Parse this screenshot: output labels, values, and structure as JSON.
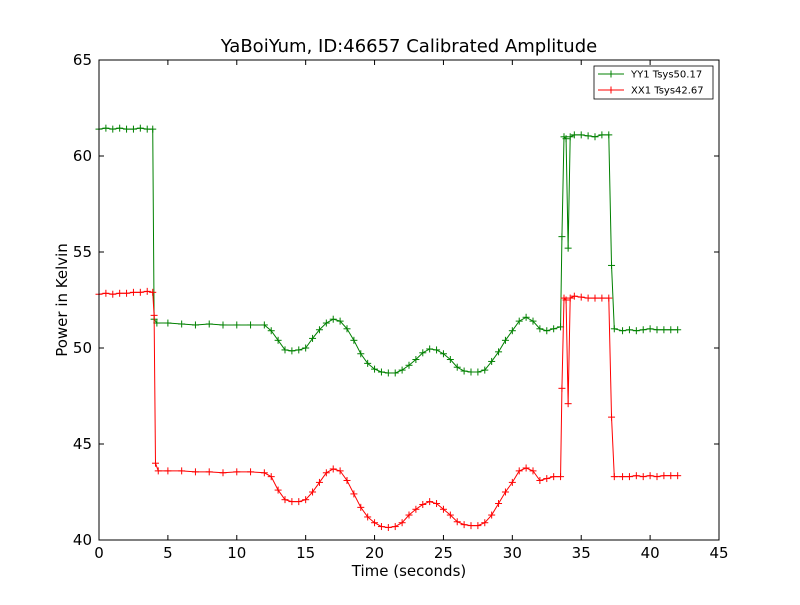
{
  "chart_data": {
    "type": "line",
    "title": "YaBoiYum, ID:46657 Calibrated Amplitude",
    "xlabel": "Time (seconds)",
    "ylabel": "Power in Kelvin",
    "xlim": [
      0,
      45
    ],
    "ylim": [
      40,
      65
    ],
    "xticks": [
      0,
      5,
      10,
      15,
      20,
      25,
      30,
      35,
      40,
      45
    ],
    "yticks": [
      40,
      45,
      50,
      55,
      60,
      65
    ],
    "grid": false,
    "legend_position": "top-right",
    "marker": "plus",
    "series": [
      {
        "name": "YY1 Tsys50.17",
        "color": "#008000",
        "points": [
          [
            0.0,
            61.4
          ],
          [
            0.5,
            61.45
          ],
          [
            1.0,
            61.4
          ],
          [
            1.5,
            61.45
          ],
          [
            2.0,
            61.4
          ],
          [
            2.5,
            61.4
          ],
          [
            3.0,
            61.45
          ],
          [
            3.5,
            61.4
          ],
          [
            3.9,
            61.4
          ],
          [
            4.0,
            51.5
          ],
          [
            4.2,
            51.3
          ],
          [
            5.0,
            51.3
          ],
          [
            6.0,
            51.25
          ],
          [
            7.0,
            51.2
          ],
          [
            8.0,
            51.25
          ],
          [
            9.0,
            51.2
          ],
          [
            10.0,
            51.2
          ],
          [
            11.0,
            51.2
          ],
          [
            12.0,
            51.2
          ],
          [
            12.5,
            50.9
          ],
          [
            13.0,
            50.4
          ],
          [
            13.5,
            49.9
          ],
          [
            14.0,
            49.85
          ],
          [
            14.5,
            49.9
          ],
          [
            15.0,
            50.0
          ],
          [
            15.5,
            50.5
          ],
          [
            16.0,
            50.95
          ],
          [
            16.5,
            51.3
          ],
          [
            17.0,
            51.5
          ],
          [
            17.5,
            51.4
          ],
          [
            18.0,
            51.0
          ],
          [
            18.5,
            50.4
          ],
          [
            19.0,
            49.7
          ],
          [
            19.5,
            49.2
          ],
          [
            20.0,
            48.9
          ],
          [
            20.5,
            48.75
          ],
          [
            21.0,
            48.7
          ],
          [
            21.5,
            48.7
          ],
          [
            22.0,
            48.85
          ],
          [
            22.5,
            49.1
          ],
          [
            23.0,
            49.4
          ],
          [
            23.5,
            49.75
          ],
          [
            24.0,
            49.95
          ],
          [
            24.5,
            49.9
          ],
          [
            25.0,
            49.7
          ],
          [
            25.5,
            49.4
          ],
          [
            26.0,
            49.0
          ],
          [
            26.5,
            48.8
          ],
          [
            27.0,
            48.75
          ],
          [
            27.5,
            48.75
          ],
          [
            28.0,
            48.85
          ],
          [
            28.5,
            49.3
          ],
          [
            29.0,
            49.8
          ],
          [
            29.5,
            50.4
          ],
          [
            30.0,
            50.9
          ],
          [
            30.5,
            51.4
          ],
          [
            31.0,
            51.6
          ],
          [
            31.5,
            51.4
          ],
          [
            32.0,
            51.0
          ],
          [
            32.5,
            50.9
          ],
          [
            33.0,
            51.0
          ],
          [
            33.5,
            51.1
          ],
          [
            33.6,
            55.8
          ],
          [
            33.75,
            61.0
          ],
          [
            33.9,
            60.9
          ],
          [
            34.05,
            55.2
          ],
          [
            34.2,
            61.0
          ],
          [
            34.5,
            61.1
          ],
          [
            35.0,
            61.1
          ],
          [
            35.5,
            61.05
          ],
          [
            36.0,
            61.0
          ],
          [
            36.5,
            61.1
          ],
          [
            37.0,
            61.1
          ],
          [
            37.2,
            54.3
          ],
          [
            37.4,
            51.0
          ],
          [
            38.0,
            50.9
          ],
          [
            38.5,
            50.95
          ],
          [
            39.0,
            50.9
          ],
          [
            39.5,
            50.95
          ],
          [
            40.0,
            51.0
          ],
          [
            40.5,
            50.95
          ],
          [
            41.0,
            50.95
          ],
          [
            41.5,
            50.95
          ],
          [
            42.0,
            50.95
          ]
        ]
      },
      {
        "name": "XX1 Tsys42.67",
        "color": "#ff0000",
        "points": [
          [
            0.0,
            52.8
          ],
          [
            0.5,
            52.85
          ],
          [
            1.0,
            52.8
          ],
          [
            1.5,
            52.85
          ],
          [
            2.0,
            52.85
          ],
          [
            2.5,
            52.9
          ],
          [
            3.0,
            52.9
          ],
          [
            3.5,
            52.95
          ],
          [
            3.9,
            52.9
          ],
          [
            4.0,
            51.7
          ],
          [
            4.1,
            44.0
          ],
          [
            4.3,
            43.6
          ],
          [
            5.0,
            43.6
          ],
          [
            6.0,
            43.6
          ],
          [
            7.0,
            43.55
          ],
          [
            8.0,
            43.55
          ],
          [
            9.0,
            43.5
          ],
          [
            10.0,
            43.55
          ],
          [
            11.0,
            43.55
          ],
          [
            12.0,
            43.5
          ],
          [
            12.5,
            43.3
          ],
          [
            13.0,
            42.6
          ],
          [
            13.5,
            42.1
          ],
          [
            14.0,
            42.0
          ],
          [
            14.5,
            42.0
          ],
          [
            15.0,
            42.1
          ],
          [
            15.5,
            42.5
          ],
          [
            16.0,
            43.0
          ],
          [
            16.5,
            43.5
          ],
          [
            17.0,
            43.7
          ],
          [
            17.5,
            43.6
          ],
          [
            18.0,
            43.1
          ],
          [
            18.5,
            42.4
          ],
          [
            19.0,
            41.7
          ],
          [
            19.5,
            41.2
          ],
          [
            20.0,
            40.9
          ],
          [
            20.5,
            40.7
          ],
          [
            21.0,
            40.65
          ],
          [
            21.5,
            40.7
          ],
          [
            22.0,
            40.9
          ],
          [
            22.5,
            41.3
          ],
          [
            23.0,
            41.6
          ],
          [
            23.5,
            41.85
          ],
          [
            24.0,
            42.0
          ],
          [
            24.5,
            41.9
          ],
          [
            25.0,
            41.6
          ],
          [
            25.5,
            41.3
          ],
          [
            26.0,
            40.95
          ],
          [
            26.5,
            40.8
          ],
          [
            27.0,
            40.75
          ],
          [
            27.5,
            40.75
          ],
          [
            28.0,
            40.9
          ],
          [
            28.5,
            41.3
          ],
          [
            29.0,
            41.9
          ],
          [
            29.5,
            42.5
          ],
          [
            30.0,
            43.0
          ],
          [
            30.5,
            43.6
          ],
          [
            31.0,
            43.75
          ],
          [
            31.5,
            43.6
          ],
          [
            32.0,
            43.1
          ],
          [
            32.5,
            43.2
          ],
          [
            33.0,
            43.3
          ],
          [
            33.5,
            43.3
          ],
          [
            33.6,
            47.9
          ],
          [
            33.75,
            52.6
          ],
          [
            33.9,
            52.5
          ],
          [
            34.05,
            47.1
          ],
          [
            34.2,
            52.6
          ],
          [
            34.5,
            52.7
          ],
          [
            35.0,
            52.65
          ],
          [
            35.5,
            52.6
          ],
          [
            36.0,
            52.6
          ],
          [
            36.5,
            52.6
          ],
          [
            37.0,
            52.6
          ],
          [
            37.2,
            46.4
          ],
          [
            37.4,
            43.3
          ],
          [
            38.0,
            43.3
          ],
          [
            38.5,
            43.3
          ],
          [
            39.0,
            43.35
          ],
          [
            39.5,
            43.3
          ],
          [
            40.0,
            43.35
          ],
          [
            40.5,
            43.3
          ],
          [
            41.0,
            43.35
          ],
          [
            41.5,
            43.35
          ],
          [
            42.0,
            43.35
          ]
        ]
      }
    ]
  }
}
